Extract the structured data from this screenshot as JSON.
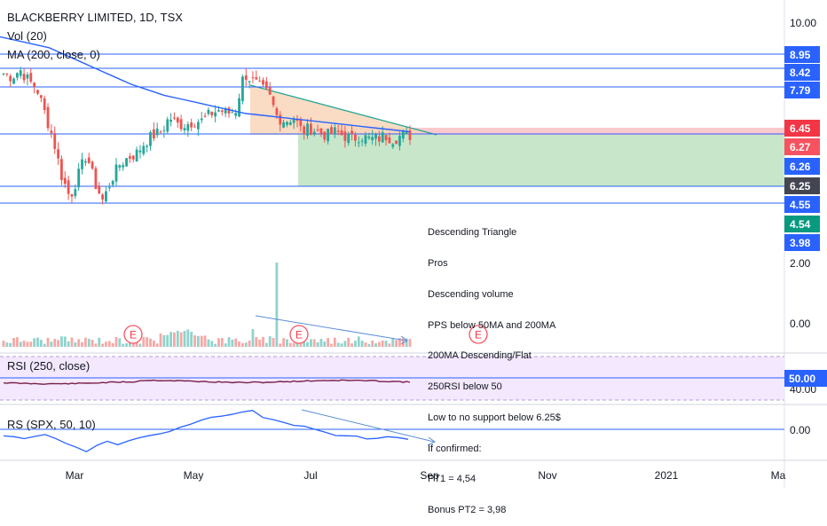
{
  "header": {
    "title": "BLACKBERRY LIMITED, 1D, TSX",
    "vol_label": "Vol (20)",
    "ma_label": "MA (200, close, 0)"
  },
  "panes": {
    "rsi_label": "RSI (250, close)",
    "rs_label": "RS (SPX, 50, 10)"
  },
  "earnings_marker": "E",
  "price_axis": {
    "ticks": [
      {
        "label": "10.00",
        "value": 10.0
      }
    ],
    "badges": [
      {
        "label": "8.95",
        "value": 8.95,
        "color": "#2962ff"
      },
      {
        "label": "8.42",
        "value": 8.42,
        "color": "#2962ff"
      },
      {
        "label": "7.79",
        "value": 7.79,
        "color": "#2962ff"
      },
      {
        "label": "6.45",
        "value": 6.45,
        "color": "#f23645"
      },
      {
        "label": "6.27",
        "value": 6.27,
        "color": "#f7525f"
      },
      {
        "label": "6.26",
        "value": 6.26,
        "color": "#2962ff"
      },
      {
        "label": "6.25",
        "value": 6.25,
        "color": "#434651"
      },
      {
        "label": "4.55",
        "value": 4.55,
        "color": "#2962ff"
      },
      {
        "label": "4.54",
        "value": 4.54,
        "color": "#089981"
      },
      {
        "label": "3.98",
        "value": 3.98,
        "color": "#2962ff"
      }
    ]
  },
  "volume_axis": {
    "ticks": [
      "2.00",
      "0.00"
    ]
  },
  "rsi_axis": {
    "badge": "50.00",
    "tick": "40.00"
  },
  "rs_axis": {
    "tick": "0.00"
  },
  "time_axis": [
    "Mar",
    "May",
    "Jul",
    "Sep",
    "Nov",
    "2021",
    "Ma"
  ],
  "annotation": [
    "Descending Triangle",
    "Pros",
    "Descending volume",
    "PPS below 50MA and 200MA",
    "200MA Descending/Flat",
    "250RSI below 50",
    "Low to no support below 6.25$",
    "If confirmed:",
    "PT1 = 4,54",
    "Bonus PT2 = 3,98"
  ],
  "colors": {
    "up": "#26a69a",
    "down": "#ef5350",
    "ma": "#2962ff",
    "hline": "#2962ff",
    "triangle_fill": "#f8d6b8",
    "target_fill": "#c8e6c9",
    "stop_fill": "#f9c9cc",
    "rsi_band": "#f3e8fd",
    "rsi_line": "#7b1f4a"
  },
  "chart_data": {
    "type": "candlestick",
    "symbol": "BLACKBERRY LIMITED",
    "interval": "1D",
    "exchange": "TSX",
    "horizontal_levels": [
      8.95,
      8.42,
      7.79,
      6.27,
      6.45,
      4.55
    ],
    "close_series": [
      8.6,
      8.5,
      8.7,
      8.4,
      8.2,
      7.5,
      6.8,
      5.8,
      5.2,
      5.8,
      6.4,
      5.6,
      5.1,
      5.7,
      6.1,
      6.3,
      6.4,
      6.7,
      6.9,
      7.0,
      7.4,
      7.2,
      7.2,
      7.3,
      7.3,
      7.5,
      7.6,
      7.5,
      7.6,
      8.6,
      8.4,
      8.2,
      8.0,
      7.4,
      7.3,
      7.4,
      7.0,
      7.1,
      7.0,
      6.9,
      7.0,
      6.9,
      6.8,
      6.9,
      6.8,
      6.8,
      6.9,
      6.8,
      6.9,
      6.9
    ],
    "ma200_series": [
      9.6,
      9.5,
      9.4,
      9.3,
      9.1,
      8.9,
      8.7,
      8.5,
      8.3,
      8.15,
      8.0,
      7.9,
      7.8,
      7.7,
      7.6,
      7.5,
      7.45,
      7.4,
      7.35,
      7.3,
      7.25,
      7.2,
      7.15,
      7.1,
      7.05,
      7.0
    ],
    "volume_axis_range": [
      0,
      2.0
    ],
    "rsi_level": 50.0,
    "rs_level": 0.0
  }
}
